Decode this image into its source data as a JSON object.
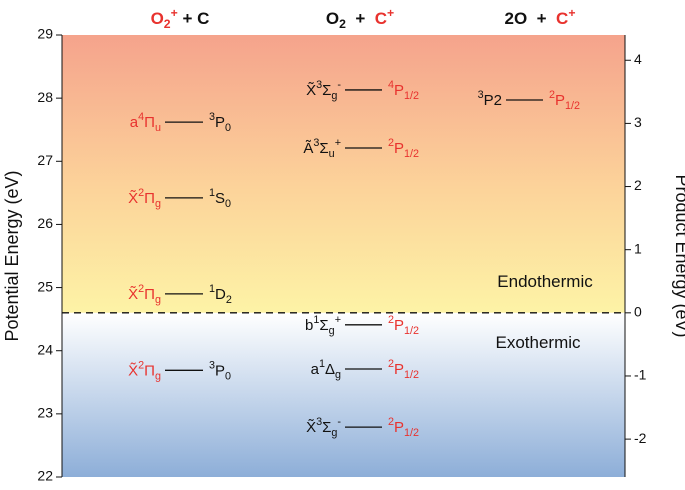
{
  "chart_data": {
    "type": "energy-levels",
    "ylabel": "Potential Energy (eV)",
    "y2label": "Product Energy (eV)",
    "ylim": [
      22,
      29
    ],
    "yticks": [
      22,
      23,
      24,
      25,
      26,
      27,
      28,
      29
    ],
    "y2lim": [
      -2.6,
      4.4
    ],
    "y2ticks": [
      -2,
      -1,
      0,
      1,
      2,
      3,
      4
    ],
    "divider_y2": 0,
    "annotations": [
      "Endothermic",
      "Exothermic"
    ],
    "columns": [
      {
        "header": [
          {
            "t": "O",
            "c": "#e8322e"
          },
          {
            "t": "2",
            "s": "sub",
            "c": "#e8322e"
          },
          {
            "t": "+",
            "s": "sup",
            "c": "#e8322e"
          },
          {
            "t": " + C"
          }
        ],
        "levels": [
          {
            "energy": 27.62,
            "left": [
              {
                "t": "a",
                "c": "#e8322e"
              },
              {
                "t": "4",
                "s": "sup",
                "c": "#e8322e"
              },
              {
                "t": "Π",
                "c": "#e8322e"
              },
              {
                "t": "u",
                "s": "sub",
                "c": "#e8322e"
              }
            ],
            "right": [
              {
                "t": "3",
                "s": "sup"
              },
              {
                "t": "P"
              },
              {
                "t": "0",
                "s": "sub"
              }
            ]
          },
          {
            "energy": 26.42,
            "left": [
              {
                "t": "X̃",
                "c": "#e8322e"
              },
              {
                "t": "2",
                "s": "sup",
                "c": "#e8322e"
              },
              {
                "t": "Π",
                "c": "#e8322e"
              },
              {
                "t": "g",
                "s": "sub",
                "c": "#e8322e"
              }
            ],
            "right": [
              {
                "t": "1",
                "s": "sup"
              },
              {
                "t": "S"
              },
              {
                "t": "0",
                "s": "sub"
              }
            ]
          },
          {
            "energy": 24.9,
            "left": [
              {
                "t": "X̃",
                "c": "#e8322e"
              },
              {
                "t": "2",
                "s": "sup",
                "c": "#e8322e"
              },
              {
                "t": "Π",
                "c": "#e8322e"
              },
              {
                "t": "g",
                "s": "sub",
                "c": "#e8322e"
              }
            ],
            "right": [
              {
                "t": "1",
                "s": "sup"
              },
              {
                "t": "D"
              },
              {
                "t": "2",
                "s": "sub"
              }
            ]
          },
          {
            "energy": 23.69,
            "left": [
              {
                "t": "X̃",
                "c": "#e8322e"
              },
              {
                "t": "2",
                "s": "sup",
                "c": "#e8322e"
              },
              {
                "t": "Π",
                "c": "#e8322e"
              },
              {
                "t": "g",
                "s": "sub",
                "c": "#e8322e"
              }
            ],
            "right": [
              {
                "t": "3",
                "s": "sup"
              },
              {
                "t": "P"
              },
              {
                "t": "0",
                "s": "sub"
              }
            ]
          }
        ]
      },
      {
        "header": [
          {
            "t": "O"
          },
          {
            "t": "2",
            "s": "sub"
          },
          {
            "t": "  +  "
          },
          {
            "t": "C",
            "c": "#e8322e"
          },
          {
            "t": "+",
            "s": "sup",
            "c": "#e8322e"
          }
        ],
        "levels": [
          {
            "energy": 28.13,
            "left": [
              {
                "t": "X̃"
              },
              {
                "t": "3",
                "s": "sup"
              },
              {
                "t": "Σ"
              },
              {
                "t": "g",
                "s": "sub"
              },
              {
                "t": "-",
                "s": "sup"
              }
            ],
            "right": [
              {
                "t": "4",
                "s": "sup",
                "c": "#e8322e"
              },
              {
                "t": "P",
                "c": "#e8322e"
              },
              {
                "t": "1/2",
                "s": "sub",
                "c": "#e8322e"
              }
            ]
          },
          {
            "energy": 27.21,
            "left": [
              {
                "t": "Ã"
              },
              {
                "t": "3",
                "s": "sup"
              },
              {
                "t": "Σ"
              },
              {
                "t": "u",
                "s": "sub"
              },
              {
                "t": "+",
                "s": "sup"
              }
            ],
            "right": [
              {
                "t": "2",
                "s": "sup",
                "c": "#e8322e"
              },
              {
                "t": "P",
                "c": "#e8322e"
              },
              {
                "t": "1/2",
                "s": "sub",
                "c": "#e8322e"
              }
            ]
          },
          {
            "energy": 24.41,
            "left": [
              {
                "t": "b"
              },
              {
                "t": "1",
                "s": "sup"
              },
              {
                "t": "Σ"
              },
              {
                "t": "g",
                "s": "sub"
              },
              {
                "t": "+",
                "s": "sup"
              }
            ],
            "right": [
              {
                "t": "2",
                "s": "sup",
                "c": "#e8322e"
              },
              {
                "t": "P",
                "c": "#e8322e"
              },
              {
                "t": "1/2",
                "s": "sub",
                "c": "#e8322e"
              }
            ]
          },
          {
            "energy": 23.71,
            "left": [
              {
                "t": "a"
              },
              {
                "t": "1",
                "s": "sup"
              },
              {
                "t": "Δ"
              },
              {
                "t": "g",
                "s": "sub"
              }
            ],
            "right": [
              {
                "t": "2",
                "s": "sup",
                "c": "#e8322e"
              },
              {
                "t": "P",
                "c": "#e8322e"
              },
              {
                "t": "1/2",
                "s": "sub",
                "c": "#e8322e"
              }
            ]
          },
          {
            "energy": 22.79,
            "left": [
              {
                "t": "X̃"
              },
              {
                "t": "3",
                "s": "sup"
              },
              {
                "t": "Σ"
              },
              {
                "t": "g",
                "s": "sub"
              },
              {
                "t": "-",
                "s": "sup"
              }
            ],
            "right": [
              {
                "t": "2",
                "s": "sup",
                "c": "#e8322e"
              },
              {
                "t": "P",
                "c": "#e8322e"
              },
              {
                "t": "1/2",
                "s": "sub",
                "c": "#e8322e"
              }
            ]
          }
        ]
      },
      {
        "header": [
          {
            "t": "2O  +  "
          },
          {
            "t": "C",
            "c": "#e8322e"
          },
          {
            "t": "+",
            "s": "sup",
            "c": "#e8322e"
          }
        ],
        "levels": [
          {
            "energy": 27.97,
            "left": [
              {
                "t": "3",
                "s": "sup"
              },
              {
                "t": "P2"
              }
            ],
            "right": [
              {
                "t": "2",
                "s": "sup",
                "c": "#e8322e"
              },
              {
                "t": "P",
                "c": "#e8322e"
              },
              {
                "t": "1/2",
                "s": "sub",
                "c": "#e8322e"
              }
            ]
          }
        ]
      }
    ]
  }
}
